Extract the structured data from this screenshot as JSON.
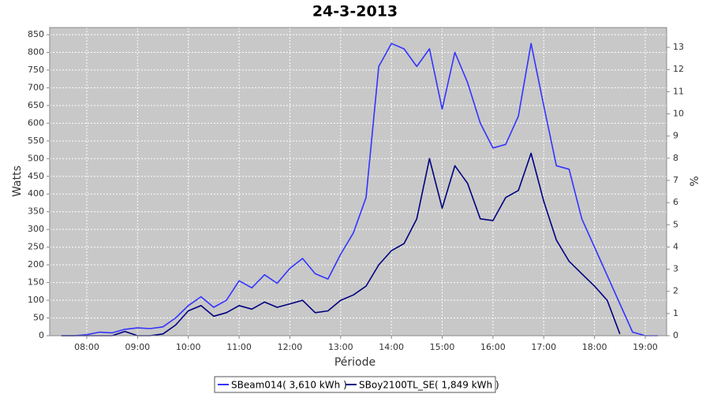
{
  "chart_data": {
    "type": "line",
    "title": "24-3-2013",
    "x_label": "Période",
    "y_label": "Watts",
    "y2_label": "%",
    "x": [
      7.5,
      7.75,
      8.0,
      8.25,
      8.5,
      8.75,
      9.0,
      9.25,
      9.5,
      9.75,
      10.0,
      10.25,
      10.5,
      10.75,
      11.0,
      11.25,
      11.5,
      11.75,
      12.0,
      12.25,
      12.5,
      12.75,
      13.0,
      13.25,
      13.5,
      13.75,
      14.0,
      14.25,
      14.5,
      14.75,
      15.0,
      15.25,
      15.5,
      15.75,
      16.0,
      16.25,
      16.5,
      16.75,
      17.0,
      17.25,
      17.5,
      17.75,
      18.0,
      18.25,
      18.5,
      18.75,
      19.0,
      19.25
    ],
    "series": [
      {
        "name": "SBeam014( 3,610 kWh )",
        "color": "#3333ff",
        "values": [
          0,
          0,
          3,
          10,
          8,
          18,
          22,
          20,
          25,
          50,
          85,
          110,
          80,
          100,
          155,
          135,
          172,
          148,
          190,
          218,
          175,
          160,
          230,
          290,
          390,
          760,
          825,
          810,
          760,
          810,
          640,
          800,
          715,
          600,
          530,
          540,
          620,
          825,
          650,
          480,
          470,
          330,
          250,
          170,
          90,
          10,
          0,
          0
        ]
      },
      {
        "name": "SBoy2100TL_SE( 1,849 kWh )",
        "color": "#000080",
        "values": [
          0,
          0,
          0,
          0,
          0,
          12,
          0,
          0,
          5,
          30,
          70,
          85,
          55,
          65,
          85,
          75,
          95,
          80,
          90,
          100,
          65,
          70,
          100,
          115,
          140,
          200,
          240,
          260,
          330,
          500,
          360,
          480,
          430,
          330,
          325,
          390,
          410,
          515,
          380,
          270,
          210,
          175,
          140,
          100,
          5,
          null,
          null,
          null
        ]
      }
    ],
    "xlim": [
      7.27,
      19.42
    ],
    "xticks": [
      {
        "value": 8,
        "label": "08:00"
      },
      {
        "value": 9,
        "label": "09:00"
      },
      {
        "value": 10,
        "label": "10:00"
      },
      {
        "value": 11,
        "label": "11:00"
      },
      {
        "value": 12,
        "label": "12:00"
      },
      {
        "value": 13,
        "label": "13:00"
      },
      {
        "value": 14,
        "label": "14:00"
      },
      {
        "value": 15,
        "label": "15:00"
      },
      {
        "value": 16,
        "label": "16:00"
      },
      {
        "value": 17,
        "label": "17:00"
      },
      {
        "value": 18,
        "label": "18:00"
      },
      {
        "value": 19,
        "label": "19:00"
      }
    ],
    "ylim": [
      0,
      870
    ],
    "yticks": [
      0,
      50,
      100,
      150,
      200,
      250,
      300,
      350,
      400,
      450,
      500,
      550,
      600,
      650,
      700,
      750,
      800,
      850
    ],
    "y2lim": [
      0,
      13.89
    ],
    "y2ticks": [
      0,
      1,
      2,
      3,
      4,
      5,
      6,
      7,
      8,
      9,
      10,
      11,
      12,
      13
    ],
    "grid": true
  }
}
